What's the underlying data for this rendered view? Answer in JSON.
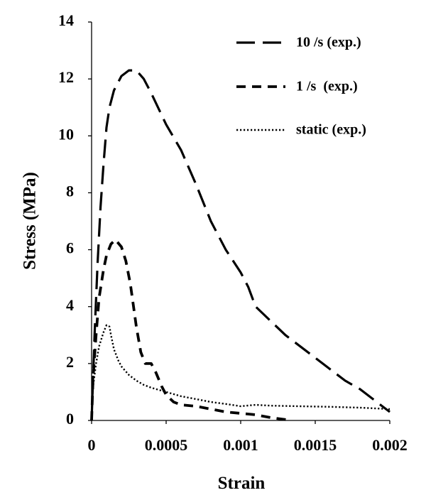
{
  "chart_data": {
    "type": "line",
    "xlabel": "Strain",
    "ylabel": "Stress (MPa)",
    "xlim": [
      0,
      0.002
    ],
    "ylim": [
      0,
      14
    ],
    "x_ticks": [
      "0",
      "0.0005",
      "0.001",
      "0.0015",
      "0.002"
    ],
    "y_ticks": [
      "0",
      "2",
      "4",
      "6",
      "8",
      "10",
      "12",
      "14"
    ],
    "grid": false,
    "legend_position": "top-right",
    "series": [
      {
        "name": "10 /s (exp.)",
        "dash": "long-dash",
        "x": [
          0,
          1e-05,
          2e-05,
          4e-05,
          6e-05,
          8e-05,
          0.0001,
          0.00012,
          0.00015,
          0.0002,
          0.00025,
          0.0003,
          0.00035,
          0.0004,
          0.0005,
          0.0006,
          0.0007,
          0.0008,
          0.0009,
          0.001,
          0.00105,
          0.0011,
          0.0012,
          0.0013,
          0.0014,
          0.0015,
          0.0016,
          0.0017,
          0.0018,
          0.0019,
          0.002
        ],
        "y": [
          0,
          1.5,
          3.0,
          5.5,
          7.5,
          9.0,
          10.3,
          11.0,
          11.6,
          12.1,
          12.3,
          12.3,
          12.0,
          11.5,
          10.4,
          9.5,
          8.3,
          7.0,
          6.0,
          5.2,
          4.7,
          4.0,
          3.5,
          3.0,
          2.6,
          2.2,
          1.8,
          1.4,
          1.1,
          0.7,
          0.3
        ]
      },
      {
        "name": "1 /s  (exp.)",
        "dash": "short-dash",
        "x": [
          0,
          1e-05,
          3e-05,
          5e-05,
          8e-05,
          0.0001,
          0.00013,
          0.00016,
          0.0002,
          0.00023,
          0.00026,
          0.0003,
          0.00033,
          0.00036,
          0.0004,
          0.00043,
          0.00047,
          0.0005,
          0.00055,
          0.0006,
          0.0007,
          0.0008,
          0.0009,
          0.001,
          0.0011,
          0.0012,
          0.0013,
          0.00133
        ],
        "y": [
          0,
          1.5,
          3.0,
          4.3,
          5.3,
          5.8,
          6.2,
          6.35,
          6.1,
          5.6,
          4.8,
          3.3,
          2.4,
          2.0,
          2.0,
          1.7,
          1.2,
          0.9,
          0.65,
          0.55,
          0.5,
          0.4,
          0.3,
          0.25,
          0.2,
          0.1,
          0.03,
          0.0
        ]
      },
      {
        "name": "static (exp.)",
        "dash": "dotted",
        "x": [
          0,
          1e-05,
          3e-05,
          5e-05,
          8e-05,
          0.0001,
          0.00012,
          0.00013,
          0.00015,
          0.00018,
          0.0002,
          0.00025,
          0.0003,
          0.00035,
          0.0004,
          0.0005,
          0.0006,
          0.0007,
          0.0008,
          0.0009,
          0.001,
          0.0011,
          0.0012,
          0.0014,
          0.0016,
          0.0018,
          0.002
        ],
        "y": [
          0,
          1.2,
          2.0,
          2.6,
          3.1,
          3.35,
          3.3,
          3.0,
          2.5,
          2.1,
          1.9,
          1.6,
          1.4,
          1.25,
          1.15,
          1.0,
          0.85,
          0.75,
          0.65,
          0.58,
          0.5,
          0.55,
          0.52,
          0.5,
          0.48,
          0.45,
          0.4
        ]
      }
    ]
  }
}
